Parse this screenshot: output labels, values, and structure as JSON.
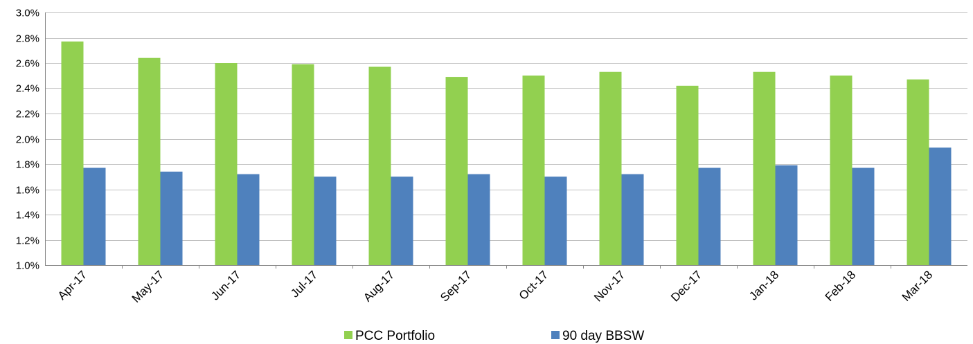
{
  "chart_data": {
    "type": "bar",
    "categories": [
      "Apr-17",
      "May-17",
      "Jun-17",
      "Jul-17",
      "Aug-17",
      "Sep-17",
      "Oct-17",
      "Nov-17",
      "Dec-17",
      "Jan-18",
      "Feb-18",
      "Mar-18"
    ],
    "series": [
      {
        "name": "PCC Portfolio",
        "color": "#92d050",
        "values": [
          2.77,
          2.64,
          2.6,
          2.59,
          2.57,
          2.49,
          2.5,
          2.53,
          2.42,
          2.53,
          2.5,
          2.47
        ]
      },
      {
        "name": "90 day BBSW",
        "color": "#4f81bd",
        "values": [
          1.77,
          1.74,
          1.72,
          1.7,
          1.7,
          1.72,
          1.7,
          1.72,
          1.77,
          1.79,
          1.77,
          1.93
        ]
      }
    ],
    "ylim": [
      1.0,
      3.0
    ],
    "y_step": 0.2,
    "y_ticks": [
      "1.0%",
      "1.2%",
      "1.4%",
      "1.6%",
      "1.8%",
      "2.0%",
      "2.2%",
      "2.4%",
      "2.6%",
      "2.8%",
      "3.0%"
    ],
    "title": "",
    "xlabel": "",
    "ylabel": "",
    "grid": true,
    "legend_position": "bottom",
    "gridline_color": "#bfbfbf"
  }
}
